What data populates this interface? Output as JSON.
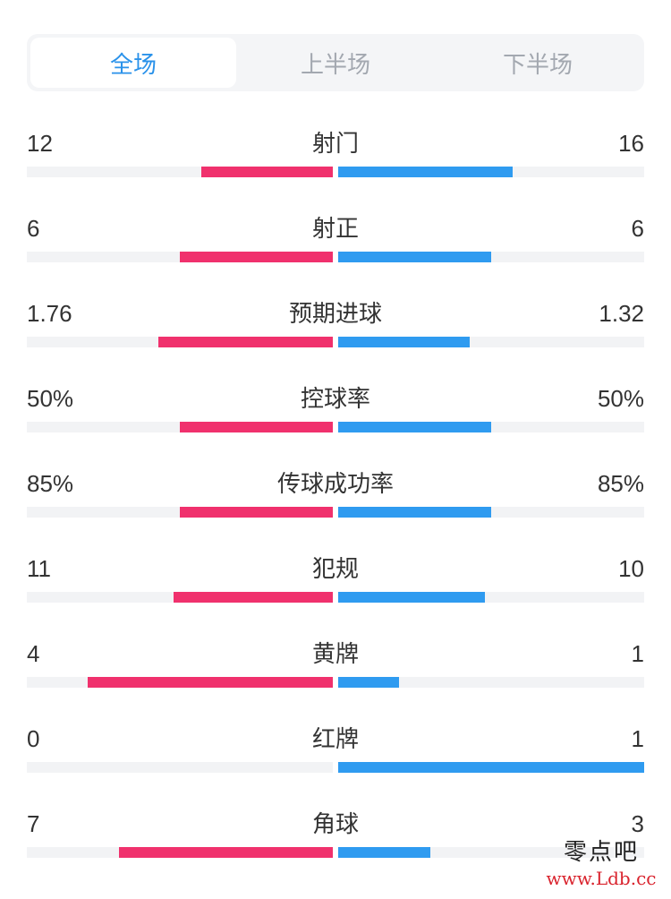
{
  "tabs": [
    {
      "label": "全场",
      "active": true
    },
    {
      "label": "上半场",
      "active": false
    },
    {
      "label": "下半场",
      "active": false
    }
  ],
  "stats": [
    {
      "name": "射门",
      "home": "12",
      "away": "16",
      "home_fill": 0.43,
      "away_fill": 0.57
    },
    {
      "name": "射正",
      "home": "6",
      "away": "6",
      "home_fill": 0.5,
      "away_fill": 0.5
    },
    {
      "name": "预期进球",
      "home": "1.76",
      "away": "1.32",
      "home_fill": 0.57,
      "away_fill": 0.43
    },
    {
      "name": "控球率",
      "home": "50%",
      "away": "50%",
      "home_fill": 0.5,
      "away_fill": 0.5
    },
    {
      "name": "传球成功率",
      "home": "85%",
      "away": "85%",
      "home_fill": 0.5,
      "away_fill": 0.5
    },
    {
      "name": "犯规",
      "home": "11",
      "away": "10",
      "home_fill": 0.52,
      "away_fill": 0.48
    },
    {
      "name": "黄牌",
      "home": "4",
      "away": "1",
      "home_fill": 0.8,
      "away_fill": 0.2
    },
    {
      "name": "红牌",
      "home": "0",
      "away": "1",
      "home_fill": 0.0,
      "away_fill": 1.0
    },
    {
      "name": "角球",
      "home": "7",
      "away": "3",
      "home_fill": 0.7,
      "away_fill": 0.3
    }
  ],
  "colors": {
    "home": "#f0316d",
    "away": "#2f9bf0",
    "active_tab": "#2a92ea"
  },
  "watermark": {
    "title": "零点吧",
    "url": "www.Ldb.cc"
  }
}
